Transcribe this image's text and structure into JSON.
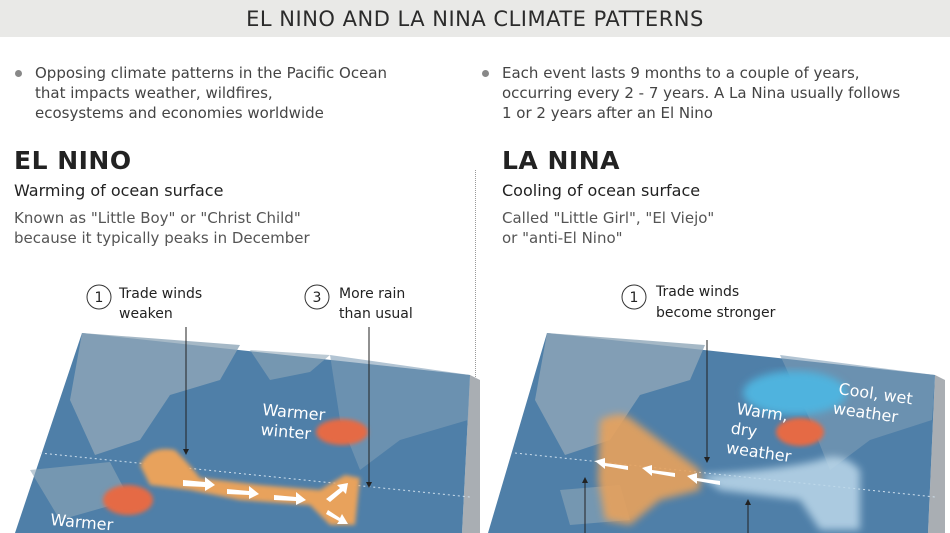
{
  "title": "EL NINO AND LA NINA CLIMATE PATTERNS",
  "bullets": [
    {
      "lines": [
        "Opposing climate patterns in the Pacific Ocean",
        "that impacts weather, wildfires,",
        "ecosystems and economies worldwide"
      ]
    },
    {
      "lines": [
        "Each event lasts 9 months to a couple of years,",
        "occurring every 2 - 7 years.  A La Nina usually follows",
        "1 or 2 years after an El Nino"
      ]
    }
  ],
  "el_nino": {
    "heading": "EL NINO",
    "subheading": "Warming of ocean surface",
    "description": [
      "Known as \"Little Boy\" or \"Christ Child\"",
      "because it typically peaks in December"
    ],
    "callouts": [
      {
        "number": "1",
        "lines": [
          "Trade winds",
          "weaken"
        ]
      },
      {
        "number": "3",
        "lines": [
          "More rain",
          "than usual"
        ]
      }
    ],
    "map_labels": {
      "na": [
        "Warmer",
        "winter"
      ],
      "aus": [
        "Warmer"
      ]
    }
  },
  "la_nina": {
    "heading": "LA NINA",
    "subheading": "Cooling of ocean surface",
    "description": [
      "Called \"Little Girl\", \"El Viejo\"",
      "or \"anti-El Nino\""
    ],
    "callouts": [
      {
        "number": "1",
        "lines": [
          "Trade winds",
          "become stronger"
        ]
      }
    ],
    "map_labels": {
      "warm": [
        "Warm,",
        "dry",
        "weather"
      ],
      "cool": [
        "Cool, wet",
        "weather"
      ]
    }
  },
  "colors": {
    "ocean": "#4f7fa8",
    "warm_water": "#e8a25c",
    "hot_spot": "#e56a45",
    "cool_spot": "#4fb3de",
    "header_bg": "#e9e9e7"
  }
}
